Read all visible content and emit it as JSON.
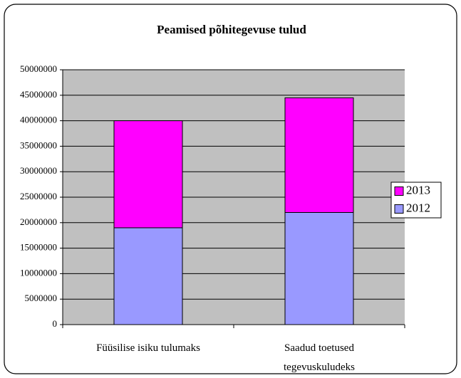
{
  "chart_data": {
    "type": "stacked_bar",
    "title": "Peamised põhitegevuse tulud",
    "categories": [
      "Füüsilise isiku tulumaks",
      "Saadud toetused tegevuskuludeks"
    ],
    "series": [
      {
        "name": "2012",
        "color": "#9999ff",
        "values": [
          19000000,
          22000000
        ]
      },
      {
        "name": "2013",
        "color": "#ff00ff",
        "values": [
          21000000,
          22500000
        ]
      }
    ],
    "ylim": [
      0,
      50000000
    ],
    "yticks": [
      0,
      5000000,
      10000000,
      15000000,
      20000000,
      25000000,
      30000000,
      35000000,
      40000000,
      45000000,
      50000000
    ],
    "grid": true,
    "legend": "right"
  }
}
